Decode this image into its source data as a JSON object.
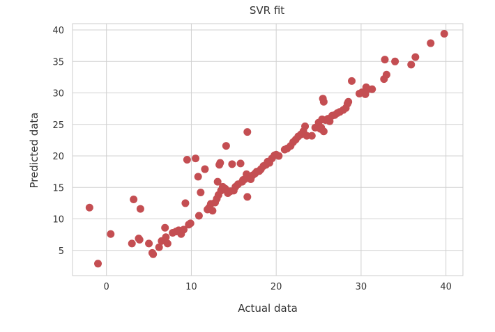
{
  "chart_data": {
    "type": "scatter",
    "title": "SVR fit",
    "xlabel": "Actual data",
    "ylabel": "Predicted data",
    "xlim": [
      -4,
      42
    ],
    "ylim": [
      1,
      41
    ],
    "xticks": [
      0,
      10,
      20,
      30,
      40
    ],
    "yticks": [
      5,
      10,
      15,
      20,
      25,
      30,
      35,
      40
    ],
    "grid": true,
    "marker_color": "#c44e52",
    "series": [
      {
        "points": [
          [
            -2,
            11.8
          ],
          [
            -1,
            2.9
          ],
          [
            0.5,
            7.6
          ],
          [
            3,
            6.1
          ],
          [
            3.2,
            13.1
          ],
          [
            3.8,
            6.9
          ],
          [
            3.9,
            6.7
          ],
          [
            4,
            11.6
          ],
          [
            5,
            6.1
          ],
          [
            5.4,
            4.6
          ],
          [
            5.5,
            4.4
          ],
          [
            6.2,
            5.5
          ],
          [
            6.5,
            6.5
          ],
          [
            6.9,
            8.6
          ],
          [
            7,
            7.1
          ],
          [
            7.2,
            6.1
          ],
          [
            7.8,
            7.8
          ],
          [
            8.2,
            8
          ],
          [
            8.5,
            8.2
          ],
          [
            8.8,
            7.6
          ],
          [
            9.1,
            8.3
          ],
          [
            9.3,
            12.5
          ],
          [
            9.5,
            19.4
          ],
          [
            9.7,
            9.1
          ],
          [
            9.9,
            9.3
          ],
          [
            10.5,
            19.6
          ],
          [
            10.8,
            16.7
          ],
          [
            10.9,
            10.5
          ],
          [
            11.1,
            14.2
          ],
          [
            11.6,
            17.9
          ],
          [
            11.9,
            11.5
          ],
          [
            12.1,
            11.8
          ],
          [
            12.3,
            12.4
          ],
          [
            12.5,
            11.3
          ],
          [
            12.8,
            12.6
          ],
          [
            13,
            13.2
          ],
          [
            13.1,
            15.9
          ],
          [
            13.2,
            13.8
          ],
          [
            13.3,
            18.6
          ],
          [
            13.4,
            18.9
          ],
          [
            13.5,
            14.5
          ],
          [
            13.7,
            15.1
          ],
          [
            14,
            14.8
          ],
          [
            14.1,
            21.6
          ],
          [
            14.3,
            14.1
          ],
          [
            14.6,
            14.4
          ],
          [
            14.8,
            18.7
          ],
          [
            15,
            14.5
          ],
          [
            15.2,
            15.1
          ],
          [
            15.5,
            15.5
          ],
          [
            15.8,
            18.8
          ],
          [
            16,
            15.9
          ],
          [
            16.1,
            16.2
          ],
          [
            16.3,
            16.3
          ],
          [
            16.5,
            17.1
          ],
          [
            16.6,
            13.5
          ],
          [
            16.6,
            23.8
          ],
          [
            16.8,
            16.6
          ],
          [
            17,
            16.3
          ],
          [
            17.2,
            16.9
          ],
          [
            17.5,
            17.2
          ],
          [
            17.7,
            17.5
          ],
          [
            18,
            17.6
          ],
          [
            18.2,
            17.9
          ],
          [
            18.5,
            18.4
          ],
          [
            18.8,
            18.6
          ],
          [
            19,
            19.1
          ],
          [
            19.2,
            18.9
          ],
          [
            19.5,
            19.6
          ],
          [
            19.8,
            20.1
          ],
          [
            20,
            20.2
          ],
          [
            20.3,
            20
          ],
          [
            21,
            21
          ],
          [
            21.3,
            21.2
          ],
          [
            21.7,
            21.6
          ],
          [
            22,
            22.2
          ],
          [
            22.3,
            22.6
          ],
          [
            22.6,
            23.1
          ],
          [
            22.9,
            23.4
          ],
          [
            23.2,
            23.9
          ],
          [
            23.4,
            24.7
          ],
          [
            23.6,
            23.2
          ],
          [
            24.2,
            23.2
          ],
          [
            24.6,
            24.5
          ],
          [
            25,
            25.3
          ],
          [
            25.2,
            24.3
          ],
          [
            25.3,
            24.5
          ],
          [
            25.4,
            25.8
          ],
          [
            25.5,
            29.1
          ],
          [
            25.6,
            28.6
          ],
          [
            25.6,
            23.9
          ],
          [
            25.8,
            25.7
          ],
          [
            26.1,
            25.9
          ],
          [
            26.3,
            25.5
          ],
          [
            26.6,
            26.4
          ],
          [
            26.9,
            26.5
          ],
          [
            27.2,
            26.8
          ],
          [
            27.5,
            27
          ],
          [
            27.9,
            27.3
          ],
          [
            28.2,
            27.6
          ],
          [
            28.4,
            28.3
          ],
          [
            28.5,
            28.6
          ],
          [
            28.9,
            31.9
          ],
          [
            29.8,
            29.9
          ],
          [
            30.1,
            30.1
          ],
          [
            30.5,
            29.8
          ],
          [
            30.6,
            30.9
          ],
          [
            30.8,
            30.6
          ],
          [
            31.3,
            30.6
          ],
          [
            32.7,
            32.2
          ],
          [
            32.8,
            35.3
          ],
          [
            33,
            32.9
          ],
          [
            34,
            35
          ],
          [
            35.9,
            34.5
          ],
          [
            36.4,
            35.7
          ],
          [
            38.2,
            37.9
          ],
          [
            39.8,
            39.4
          ]
        ]
      }
    ]
  }
}
